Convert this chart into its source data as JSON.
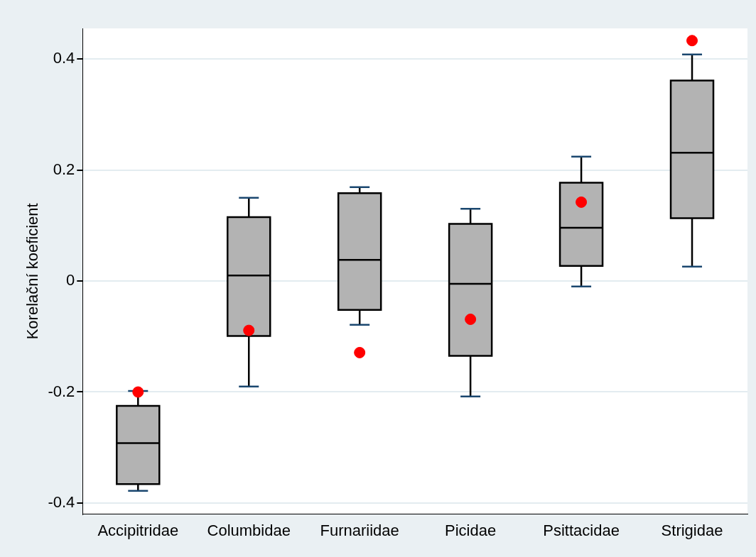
{
  "chart_data": {
    "type": "box",
    "ylabel": "Korelační koeficient",
    "categories": [
      "Accipitridae",
      "Columbidae",
      "Furnariidae",
      "Picidae",
      "Psittacidae",
      "Strigidae"
    ],
    "ylim": [
      -0.42,
      0.455
    ],
    "yticks": [
      -0.4,
      -0.2,
      0,
      0.2,
      0.4
    ],
    "grid": "y",
    "legend": false,
    "marker": "circle",
    "series": [
      {
        "type": "box",
        "color": "#b3b3b3",
        "boxes": [
          {
            "low": -0.378,
            "q1": -0.366,
            "median": -0.292,
            "q3": -0.225,
            "high": -0.198
          },
          {
            "low": -0.19,
            "q1": -0.099,
            "median": 0.01,
            "q3": 0.115,
            "high": 0.15
          },
          {
            "low": -0.079,
            "q1": -0.052,
            "median": 0.038,
            "q3": 0.158,
            "high": 0.169
          },
          {
            "low": -0.208,
            "q1": -0.135,
            "median": -0.005,
            "q3": 0.103,
            "high": 0.13
          },
          {
            "low": -0.01,
            "q1": 0.027,
            "median": 0.096,
            "q3": 0.177,
            "high": 0.224
          },
          {
            "low": 0.026,
            "q1": 0.113,
            "median": 0.231,
            "q3": 0.361,
            "high": 0.408
          }
        ]
      },
      {
        "type": "scatter",
        "color": "#ff0000",
        "x": [
          "Accipitridae",
          "Columbidae",
          "Furnariidae",
          "Picidae",
          "Psittacidae",
          "Strigidae"
        ],
        "values": [
          -0.2,
          -0.089,
          -0.129,
          -0.069,
          0.142,
          0.433
        ]
      }
    ]
  }
}
